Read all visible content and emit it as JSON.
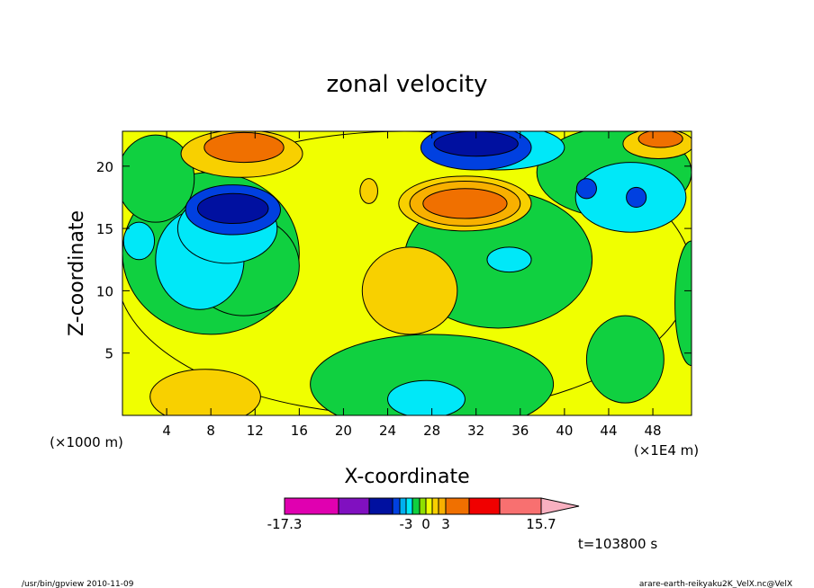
{
  "chart_data": {
    "type": "contour",
    "title": "zonal velocity",
    "xlabel": "X-coordinate",
    "ylabel": "Z-coordinate",
    "x_unit_left": "(×1000 m)",
    "x_unit_right": "(×1E4 m)",
    "x_ticks": [
      4,
      8,
      12,
      16,
      20,
      24,
      28,
      32,
      36,
      40,
      44,
      48
    ],
    "y_ticks": [
      5,
      10,
      15,
      20
    ],
    "xlim": [
      0,
      51.5
    ],
    "ylim": [
      0,
      22.8
    ],
    "time_label": "t=103800 s",
    "colorbar": {
      "labels": [
        "-17.3",
        "-3",
        "0",
        "3",
        "15.7"
      ],
      "bands": [
        {
          "color": "#e000b0",
          "from": -17.3,
          "to": -12
        },
        {
          "color": "#8010c0",
          "from": -12,
          "to": -9
        },
        {
          "color": "#0010a0",
          "from": -9,
          "to": -6
        },
        {
          "color": "#0040e0",
          "from": -6,
          "to": -4.5
        },
        {
          "color": "#00b0f0",
          "from": -4.5,
          "to": -3
        },
        {
          "color": "#00e8f8",
          "from": -3,
          "to": -2
        },
        {
          "color": "#10d040",
          "from": -2,
          "to": -1
        },
        {
          "color": "#90e000",
          "from": -1,
          "to": 0
        },
        {
          "color": "#f0ff00",
          "from": 0,
          "to": 1
        },
        {
          "color": "#f8d000",
          "from": 1,
          "to": 2
        },
        {
          "color": "#f8b000",
          "from": 2,
          "to": 3
        },
        {
          "color": "#f07000",
          "from": 3,
          "to": 6
        },
        {
          "color": "#f00000",
          "from": 6,
          "to": 9
        },
        {
          "color": "#f87070",
          "from": 9,
          "to": 12
        },
        {
          "color": "#f8b0c0",
          "from": 12,
          "to": 15.7
        }
      ]
    },
    "regions": [
      {
        "level": 0,
        "color": "#f0ff00",
        "cx": 25.5,
        "cy": 11.4,
        "rx": 26,
        "ry": 11.4
      },
      {
        "level": -2,
        "color": "#10d040",
        "cx": 8,
        "cy": 13,
        "rx": 8,
        "ry": 6.5
      },
      {
        "level": -2,
        "color": "#10d040",
        "cx": 3,
        "cy": 19,
        "rx": 3.5,
        "ry": 3.5
      },
      {
        "level": -2,
        "color": "#10d040",
        "cx": 11,
        "cy": 12,
        "rx": 5,
        "ry": 4
      },
      {
        "level": -2,
        "color": "#10d040",
        "cx": 34,
        "cy": 12.5,
        "rx": 8.5,
        "ry": 5.5
      },
      {
        "level": -2,
        "color": "#10d040",
        "cx": 28,
        "cy": 2.5,
        "rx": 11,
        "ry": 4
      },
      {
        "level": -2,
        "color": "#10d040",
        "cx": 44.5,
        "cy": 19.5,
        "rx": 7,
        "ry": 3.6
      },
      {
        "level": -2,
        "color": "#10d040",
        "cx": 45.5,
        "cy": 4.5,
        "rx": 3.5,
        "ry": 3.5
      },
      {
        "level": -2,
        "color": "#10d040",
        "cx": 51.5,
        "cy": 9,
        "rx": 1.5,
        "ry": 5
      },
      {
        "level": -3,
        "color": "#00e8f8",
        "cx": 7,
        "cy": 12.5,
        "rx": 4,
        "ry": 4
      },
      {
        "level": -3,
        "color": "#00e8f8",
        "cx": 9.5,
        "cy": 15,
        "rx": 4.5,
        "ry": 2.8
      },
      {
        "level": -3,
        "color": "#00e8f8",
        "cx": 27.5,
        "cy": 1.3,
        "rx": 3.5,
        "ry": 1.5
      },
      {
        "level": -3,
        "color": "#00e8f8",
        "cx": 35,
        "cy": 12.5,
        "rx": 2,
        "ry": 1
      },
      {
        "level": -3,
        "color": "#00e8f8",
        "cx": 46,
        "cy": 17.5,
        "rx": 5,
        "ry": 2.8
      },
      {
        "level": -3,
        "color": "#00e8f8",
        "cx": 34,
        "cy": 21.5,
        "rx": 6,
        "ry": 1.8
      },
      {
        "level": -3,
        "color": "#00e8f8",
        "cx": 1.5,
        "cy": 14,
        "rx": 1.4,
        "ry": 1.5
      },
      {
        "level": -4.5,
        "color": "#0040e0",
        "cx": 10,
        "cy": 16.5,
        "rx": 4.3,
        "ry": 2.0
      },
      {
        "level": -4.5,
        "color": "#0040e0",
        "cx": 32,
        "cy": 21.5,
        "rx": 5,
        "ry": 1.8
      },
      {
        "level": -4.5,
        "color": "#0040e0",
        "cx": 42,
        "cy": 18.2,
        "rx": 0.9,
        "ry": 0.8
      },
      {
        "level": -4.5,
        "color": "#0040e0",
        "cx": 46.5,
        "cy": 17.5,
        "rx": 0.9,
        "ry": 0.8
      },
      {
        "level": -6,
        "color": "#0010a0",
        "cx": 10,
        "cy": 16.6,
        "rx": 3.2,
        "ry": 1.2
      },
      {
        "level": -6,
        "color": "#0010a0",
        "cx": 32,
        "cy": 21.8,
        "rx": 3.8,
        "ry": 1.0
      },
      {
        "level": 1,
        "color": "#f8d000",
        "cx": 26,
        "cy": 10,
        "rx": 4.3,
        "ry": 3.5
      },
      {
        "level": 1,
        "color": "#f8d000",
        "cx": 7.5,
        "cy": 1.5,
        "rx": 5,
        "ry": 2.2
      },
      {
        "level": 1,
        "color": "#f8d000",
        "cx": 10.8,
        "cy": 21,
        "rx": 5.5,
        "ry": 1.9
      },
      {
        "level": 1,
        "color": "#f8d000",
        "cx": 31,
        "cy": 17,
        "rx": 6,
        "ry": 2.2
      },
      {
        "level": 1,
        "color": "#f8d000",
        "cx": 48.5,
        "cy": 21.8,
        "rx": 3.2,
        "ry": 1.2
      },
      {
        "level": 1,
        "color": "#f8d000",
        "cx": 22.3,
        "cy": 18,
        "rx": 0.8,
        "ry": 1.0
      },
      {
        "level": 2,
        "color": "#f8b000",
        "cx": 31,
        "cy": 17,
        "rx": 5,
        "ry": 1.8
      },
      {
        "level": 3,
        "color": "#f07000",
        "cx": 11,
        "cy": 21.5,
        "rx": 3.6,
        "ry": 1.2
      },
      {
        "level": 3,
        "color": "#f07000",
        "cx": 31,
        "cy": 17,
        "rx": 3.8,
        "ry": 1.2
      },
      {
        "level": 3,
        "color": "#f07000",
        "cx": 48.7,
        "cy": 22.2,
        "rx": 2.0,
        "ry": 0.7
      }
    ]
  },
  "footer": {
    "left": "/usr/bin/gpview   2010-11-09",
    "right": "arare-earth-reikyaku2K_VelX.nc@VelX"
  }
}
